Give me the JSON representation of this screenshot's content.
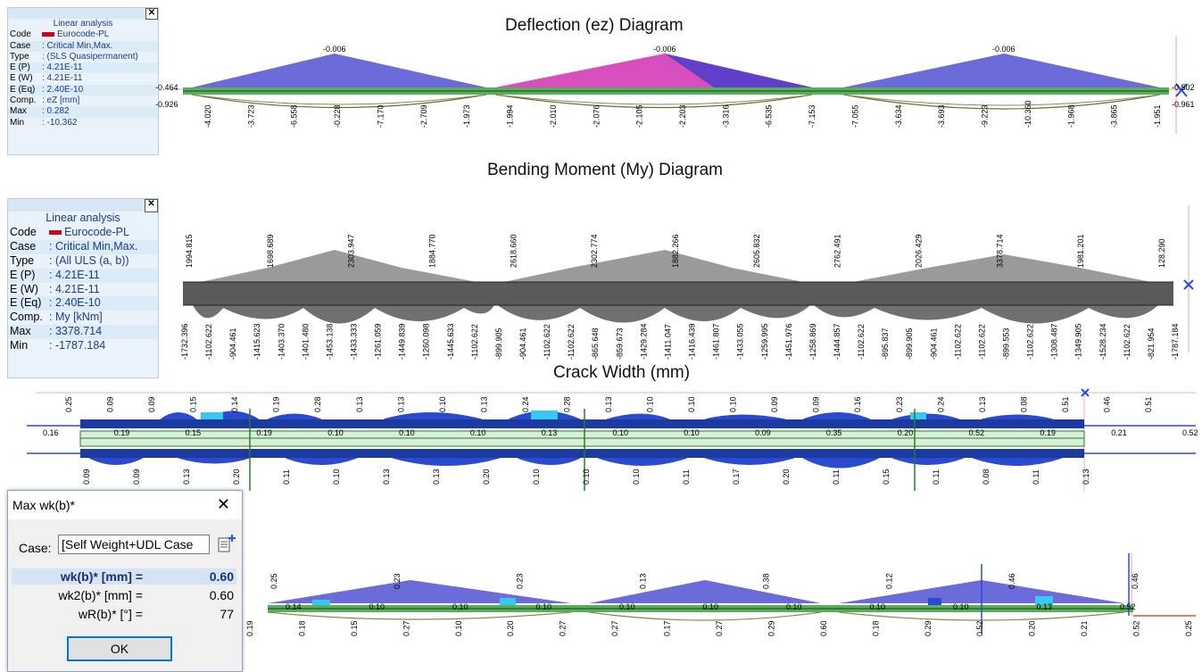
{
  "titles": {
    "deflection": "Deflection (ez) Diagram",
    "moment": "Bending Moment (My) Diagram",
    "crack": "Crack Width (mm)"
  },
  "panel_defl": {
    "title": "Linear analysis",
    "rows": [
      {
        "k": "Code",
        "v": "Eurocode-PL"
      },
      {
        "k": "Case",
        "v": ": Critical Min,Max."
      },
      {
        "k": "Type",
        "v": ": (SLS Quasipermanent)"
      },
      {
        "k": "E (P)",
        "v": ": 4.21E-11"
      },
      {
        "k": "E (W)",
        "v": ": 4.21E-11"
      },
      {
        "k": "E (Eq)",
        "v": ": 2.40E-10"
      },
      {
        "k": "Comp.",
        "v": ": eZ [mm]"
      },
      {
        "k": "Max",
        "v": ": 0.282"
      },
      {
        "k": "Min",
        "v": ": -10.362"
      }
    ]
  },
  "panel_moment": {
    "title": "Linear analysis",
    "rows": [
      {
        "k": "Code",
        "v": "Eurocode-PL"
      },
      {
        "k": "Case",
        "v": ": Critical Min,Max."
      },
      {
        "k": "Type",
        "v": ": (All ULS  (a, b))"
      },
      {
        "k": "E (P)",
        "v": ": 4.21E-11"
      },
      {
        "k": "E (W)",
        "v": ": 4.21E-11"
      },
      {
        "k": "E (Eq)",
        "v": ": 2.40E-10"
      },
      {
        "k": "Comp.",
        "v": ": My [kNm]"
      },
      {
        "k": "Max",
        "v": ": 3378.714"
      },
      {
        "k": "Min",
        "v": ": -1787.184"
      }
    ]
  },
  "dialog": {
    "title": "Max wk(b)*",
    "case_label": "Case:",
    "case_value": "[Self Weight+UDL Case",
    "wk_label": "wk(b)* [mm] =",
    "wk_value": "0.60",
    "wk2_label": "wk2(b)* [mm] =",
    "wk2_value": "0.60",
    "wr_label": "wR(b)* [°] =",
    "wr_value": "77",
    "ok_label": "OK"
  },
  "labels": {
    "defl_peaks": [
      "-0.006",
      "-0.006",
      "-0.006"
    ],
    "defl_side": [
      "-0.464",
      "-0.926",
      "-0.502",
      "-0.961"
    ],
    "defl_bottom": [
      "-4.020",
      "-3.723",
      "-6.558",
      "-0.228",
      "-7.170",
      "-2.709",
      "-1.973",
      "-1.994",
      "-2.010",
      "-2.076",
      "-2.105",
      "-2.203",
      "-3.316",
      "-6.535",
      "-7.153",
      "-7.055",
      "-3.634",
      "-3.693",
      "-9.223",
      "-10.360",
      "-1.968",
      "-3.865",
      "-1.951"
    ],
    "mom_top": [
      "1994.815",
      "1698.689",
      "2303.947",
      "1884.770",
      "2618.660",
      "2302.774",
      "1882.266",
      "2605.832",
      "2762.491",
      "2026.429",
      "3378.714",
      "1981.201",
      "128.290"
    ],
    "mom_bottom": [
      "-1732.396",
      "-1102.622",
      "-904.461",
      "-1415.623",
      "-1403.370",
      "-1401.480",
      "-1453.138",
      "-1433.333",
      "-1261.059",
      "-1449.839",
      "-1260.098",
      "-1445.633",
      "-1102.622",
      "-899.905",
      "-904.461",
      "-1102.622",
      "-1102.622",
      "-865.648",
      "-859.673",
      "-1429.284",
      "-1411.047",
      "-1416.439",
      "-1461.807",
      "-1433.055",
      "-1259.995",
      "-1451.976",
      "-1258.869",
      "-1444.857",
      "-1102.622",
      "-895.837",
      "-899.905",
      "-904.461",
      "-1102.622",
      "-1102.622",
      "-899.553",
      "-1102.622",
      "-1308.487",
      "-1349.905",
      "-1528.234",
      "-1102.622",
      "-821.954",
      "-1787.184"
    ],
    "crack_top": [
      "0.25",
      "0.09",
      "0.09",
      "0.15",
      "0.14",
      "0.19",
      "0.28",
      "0.13",
      "0.13",
      "0.10",
      "0.13",
      "0.24",
      "0.28",
      "0.13",
      "0.10",
      "0.10",
      "0.10",
      "0.09",
      "0.09",
      "0.16",
      "0.23",
      "0.24",
      "0.13",
      "0.08",
      "0.51",
      "0.46",
      "0.51"
    ],
    "crack_mid": [
      "0.16",
      "0.19",
      "0.15",
      "0.19",
      "0.10",
      "0.10",
      "0.10",
      "0.13",
      "0.10",
      "0.10",
      "0.09",
      "0.35",
      "0.20",
      "0.52",
      "0.19",
      "0.21",
      "0.52"
    ],
    "crack_bottom": [
      "0.09",
      "0.09",
      "0.13",
      "0.20",
      "0.11",
      "0.10",
      "0.13",
      "0.13",
      "0.20",
      "0.10",
      "0.10",
      "0.10",
      "0.11",
      "0.17",
      "0.20",
      "0.11",
      "0.15",
      "0.11",
      "0.08",
      "0.11",
      "0.13"
    ],
    "crack2_top": [
      "0.25",
      "0.23",
      "0.23",
      "0.13",
      "0.38",
      "0.12",
      "0.46",
      "0.46"
    ],
    "crack2_mid": [
      "0.14",
      "0.10",
      "0.10",
      "0.10",
      "0.10",
      "0.10",
      "0.10",
      "0.10",
      "0.10",
      "0.13",
      "0.52"
    ],
    "crack2_bottom": [
      "0.19",
      "0.18",
      "0.15",
      "0.27",
      "0.10",
      "0.20",
      "0.27",
      "0.27",
      "0.17",
      "0.27",
      "0.29",
      "0.60",
      "0.18",
      "0.29",
      "0.52",
      "0.20",
      "0.21",
      "0.52",
      "0.25"
    ]
  }
}
